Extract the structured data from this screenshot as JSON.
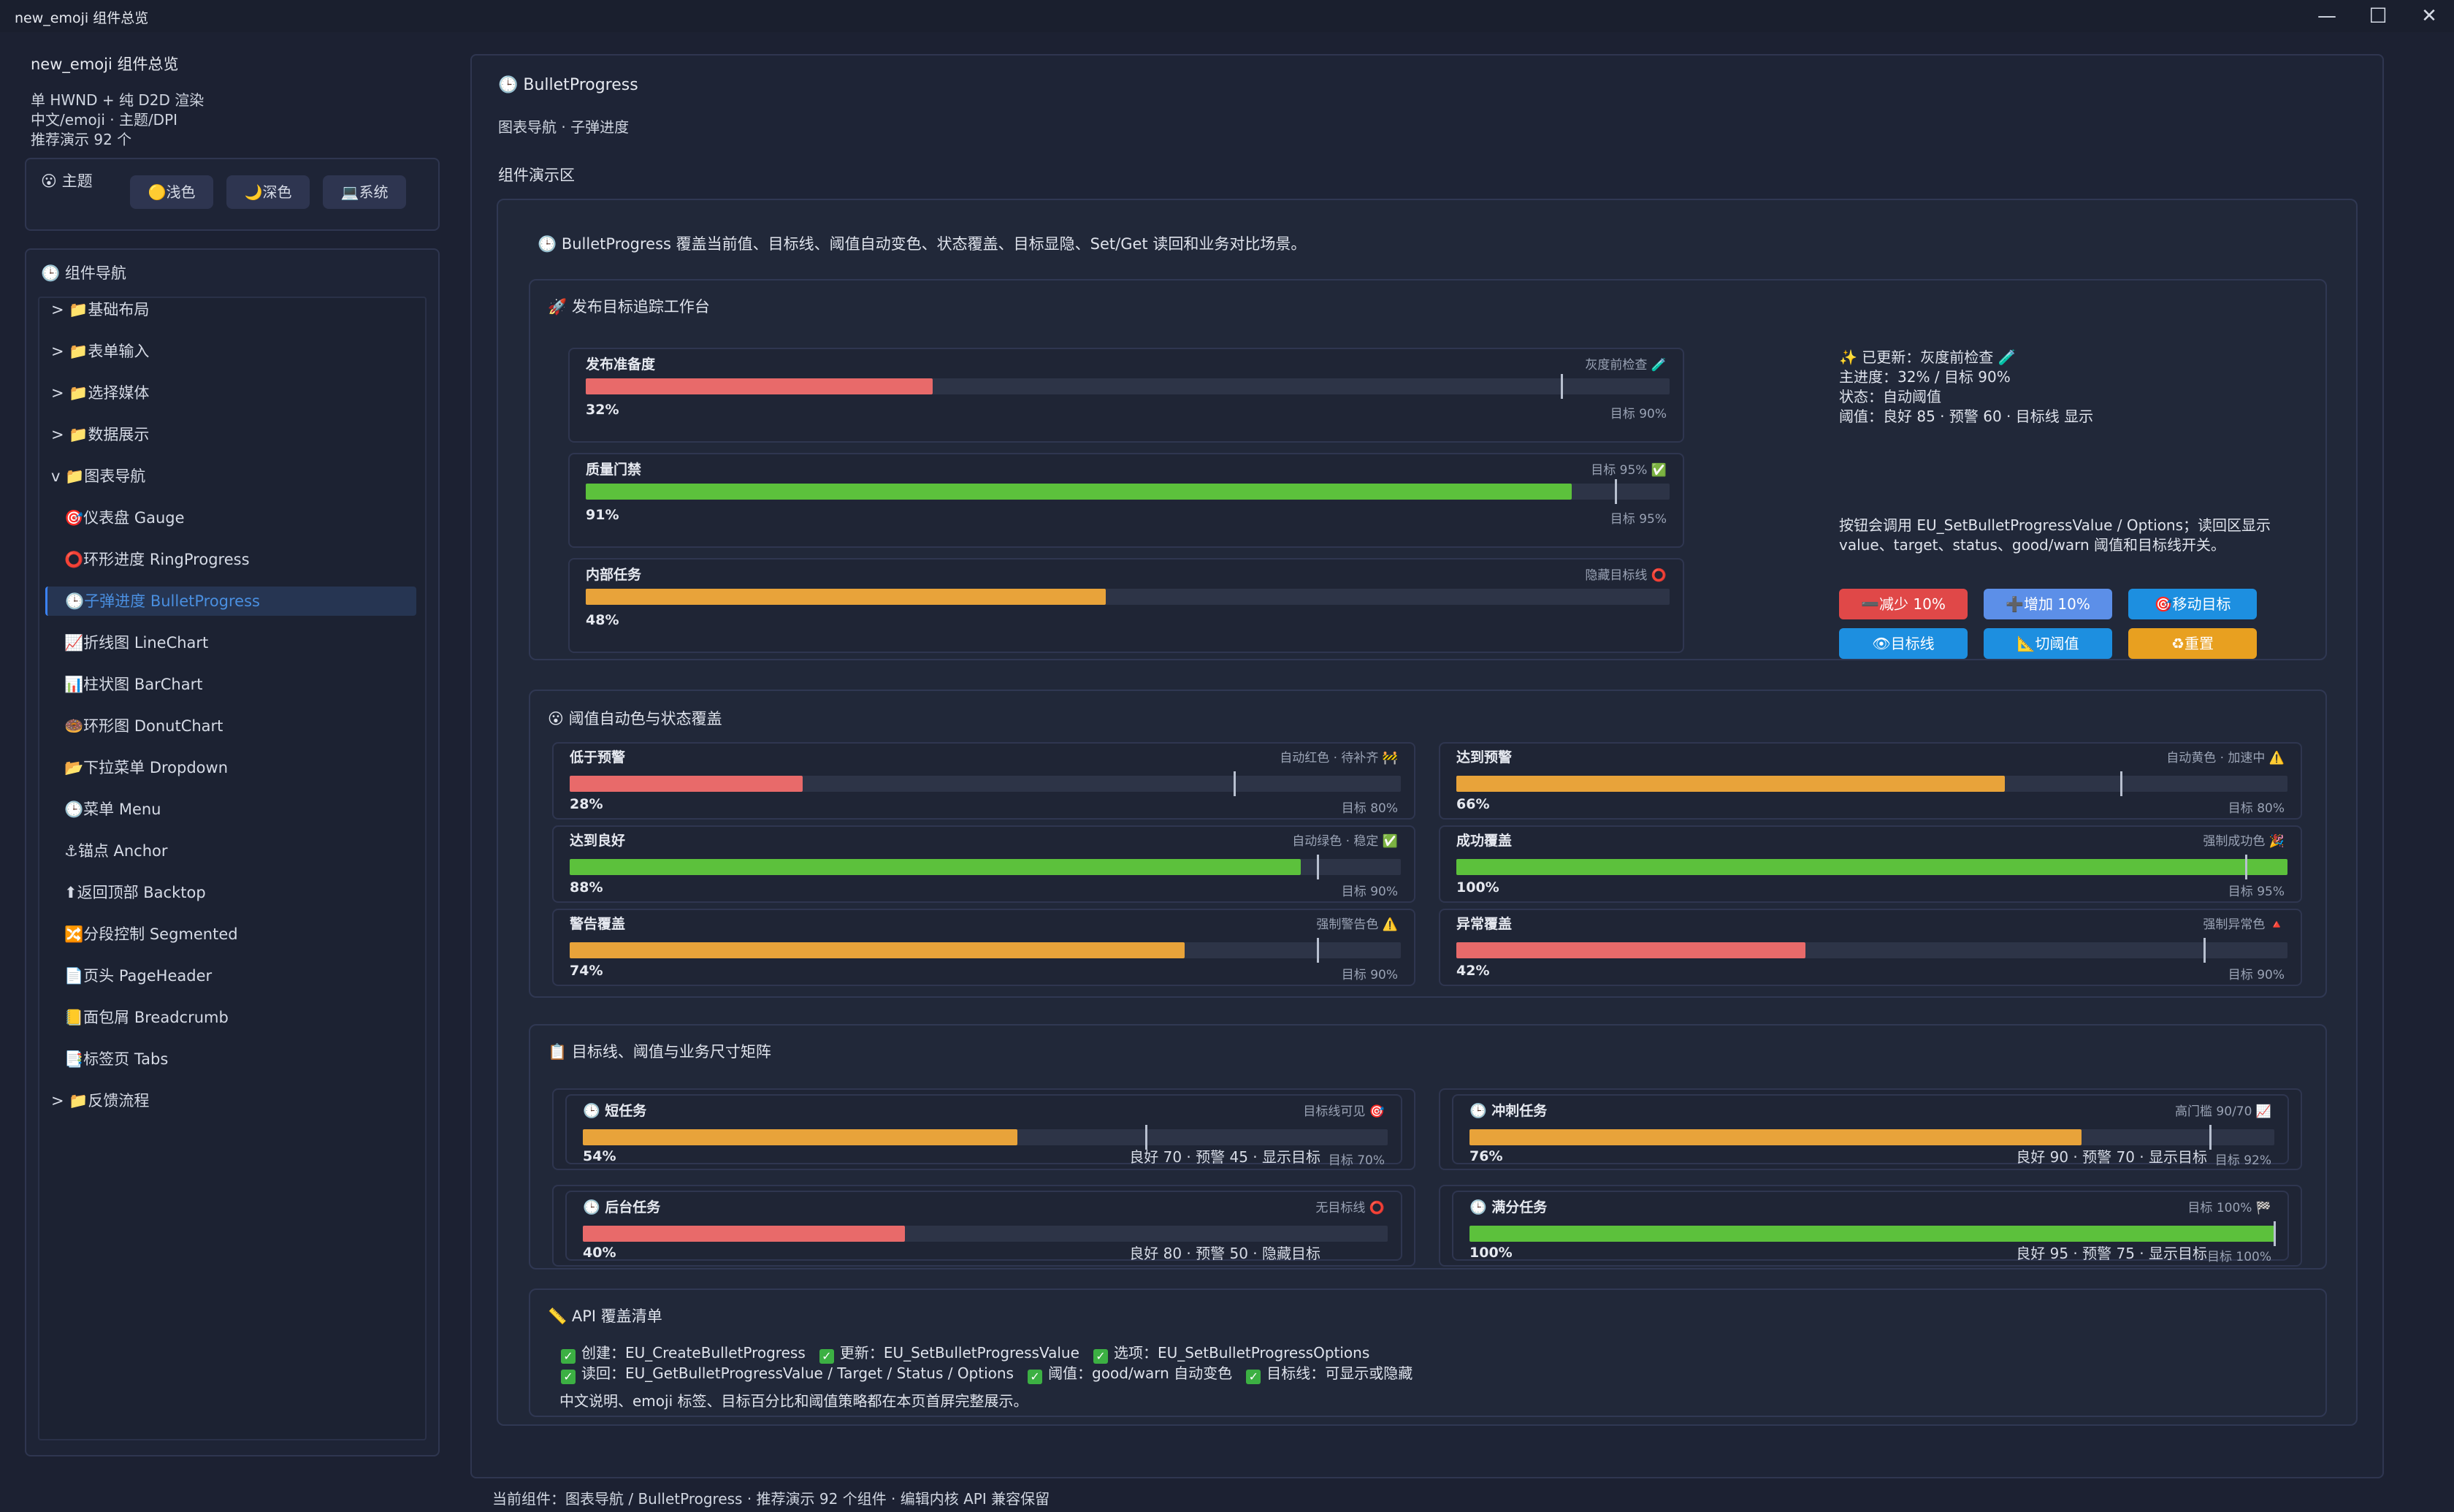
{
  "window": {
    "title": "new_emoji 组件总览",
    "app_icon": "puzzle-icon"
  },
  "sidebar": {
    "title": "new_emoji 组件总览",
    "desc": [
      "单 HWND + 纯 D2D 渲染",
      "中文/emoji · 主题/DPI",
      "推荐演示 92 个"
    ],
    "theme": {
      "label": "主题",
      "buttons": [
        {
          "label": "浅色",
          "icon": "sun-icon"
        },
        {
          "label": "深色",
          "icon": "moon-icon"
        },
        {
          "label": "系统",
          "icon": "monitor-icon"
        }
      ]
    },
    "nav_title": "组件导航",
    "nav": [
      {
        "label": "> 📁基础布局"
      },
      {
        "label": "> 📁表单输入"
      },
      {
        "label": "> 📁选择媒体"
      },
      {
        "label": "> 📁数据展示"
      },
      {
        "label": "v 📁图表导航"
      },
      {
        "label": "🎯仪表盘 Gauge"
      },
      {
        "label": "⭕环形进度 RingProgress"
      },
      {
        "label": "🕒子弹进度 BulletProgress"
      },
      {
        "label": "📈折线图 LineChart"
      },
      {
        "label": "📊柱状图 BarChart"
      },
      {
        "label": "🍩环形图 DonutChart"
      },
      {
        "label": "📂下拉菜单 Dropdown"
      },
      {
        "label": "🕒菜单 Menu"
      },
      {
        "label": "⚓锚点 Anchor"
      },
      {
        "label": "⬆返回顶部 Backtop"
      },
      {
        "label": "🔀分段控制 Segmented"
      },
      {
        "label": "📄页头 PageHeader"
      },
      {
        "label": "📒面包屑 Breadcrumb"
      },
      {
        "label": "📑标签页 Tabs"
      },
      {
        "label": "> 📁反馈流程"
      }
    ]
  },
  "main": {
    "title": "BulletProgress",
    "subtitle": "图表导航 · 子弹进度",
    "demo_label": "组件演示区",
    "intro": "BulletProgress 覆盖当前值、目标线、阈值自动变色、状态覆盖、目标显隐、Set/Get 读回和业务对比场景。",
    "release": {
      "title": "发布目标追踪工作台",
      "bullets": [
        {
          "label": "发布准备度",
          "right": "灰度前检查 🧪",
          "value": 32,
          "target": 90,
          "pct": "32%",
          "tgt": "目标 90%",
          "color": "#e86a6a",
          "show_target": true
        },
        {
          "label": "质量门禁",
          "right": "目标 95% ✅",
          "value": 91,
          "target": 95,
          "pct": "91%",
          "tgt": "目标 95%",
          "color": "#5cc13c",
          "show_target": true
        },
        {
          "label": "内部任务",
          "right": "隐藏目标线 ⭕",
          "value": 48,
          "target": null,
          "pct": "48%",
          "tgt": "",
          "color": "#e8a33a",
          "show_target": false
        }
      ],
      "info": [
        "✨ 已更新：灰度前检查 🧪",
        "主进度：32% / 目标 90%",
        "状态：自动阈值",
        "阈值：良好 85 · 预警 60 · 目标线 显示"
      ],
      "info2": [
        "按钮会调用 EU_SetBulletProgressValue / Options；读回区显示",
        "value、target、status、good/warn 阈值和目标线开关。"
      ],
      "buttons": [
        {
          "label": "➖减少 10%",
          "color": "#e04848"
        },
        {
          "label": "➕增加 10%",
          "color": "#5c8fe8"
        },
        {
          "label": "🎯移动目标",
          "color": "#1d8fe0"
        },
        {
          "label": "👁目标线",
          "color": "#1d8fe0"
        },
        {
          "label": "📐切阈值",
          "color": "#1d8fe0"
        },
        {
          "label": "♻重置",
          "color": "#e8a020"
        }
      ]
    },
    "threshold": {
      "title": "阈值自动色与状态覆盖",
      "bullets": [
        {
          "label": "低于预警",
          "right": "自动红色 · 待补齐 🚧",
          "value": 28,
          "target": 80,
          "pct": "28%",
          "tgt": "目标 80%",
          "color": "#e86a6a"
        },
        {
          "label": "达到预警",
          "right": "自动黄色 · 加速中 ⚠️",
          "value": 66,
          "target": 80,
          "pct": "66%",
          "tgt": "目标 80%",
          "color": "#e8a33a"
        },
        {
          "label": "达到良好",
          "right": "自动绿色 · 稳定 ✅",
          "value": 88,
          "target": 90,
          "pct": "88%",
          "tgt": "目标 90%",
          "color": "#5cc13c"
        },
        {
          "label": "成功覆盖",
          "right": "强制成功色 🎉",
          "value": 100,
          "target": 95,
          "pct": "100%",
          "tgt": "目标 95%",
          "color": "#5cc13c"
        },
        {
          "label": "警告覆盖",
          "right": "强制警告色 ⚠️",
          "value": 74,
          "target": 90,
          "pct": "74%",
          "tgt": "目标 90%",
          "color": "#e8a33a"
        },
        {
          "label": "异常覆盖",
          "right": "强制异常色 🔺",
          "value": 42,
          "target": 90,
          "pct": "42%",
          "tgt": "目标 90%",
          "color": "#e86a6a"
        }
      ]
    },
    "matrix": {
      "title": "目标线、阈值与业务尺寸矩阵",
      "bullets": [
        {
          "label": "🕒 短任务",
          "right": "目标线可见 🎯",
          "value": 54,
          "target": 70,
          "pct": "54%",
          "tgt": "目标 70%",
          "thr": "良好 70 · 预警 45 · 显示目标",
          "color": "#e8a33a",
          "show_target": true
        },
        {
          "label": "🕒 冲刺任务",
          "right": "高门槛 90/70 📈",
          "value": 76,
          "target": 92,
          "pct": "76%",
          "tgt": "目标 92%",
          "thr": "良好 90 · 预警 70 · 显示目标",
          "color": "#e8a33a",
          "show_target": true
        },
        {
          "label": "🕒 后台任务",
          "right": "无目标线 ⭕",
          "value": 40,
          "target": null,
          "pct": "40%",
          "tgt": "",
          "thr": "良好 80 · 预警 50 · 隐藏目标",
          "color": "#e86a6a",
          "show_target": false
        },
        {
          "label": "🕒 满分任务",
          "right": "目标 100% 🏁",
          "value": 100,
          "target": 100,
          "pct": "100%",
          "tgt": "目标 100%",
          "thr": "良好 95 · 预警 75 · 显示目标",
          "color": "#5cc13c",
          "show_target": true
        }
      ]
    },
    "api": {
      "title": "API 覆盖清单",
      "line1": [
        "创建：EU_CreateBulletProgress",
        "更新：EU_SetBulletProgressValue",
        "选项：EU_SetBulletProgressOptions"
      ],
      "line2": [
        "读回：EU_GetBulletProgressValue / Target / Status / Options",
        "阈值：good/warn 自动变色",
        "目标线：可显示或隐藏"
      ],
      "note": "中文说明、emoji 标签、目标百分比和阈值策略都在本页首屏完整展示。"
    }
  },
  "status_bar": "当前组件：图表导航 / BulletProgress · 推荐演示 92 个组件 · 编辑内核 API 兼容保留"
}
